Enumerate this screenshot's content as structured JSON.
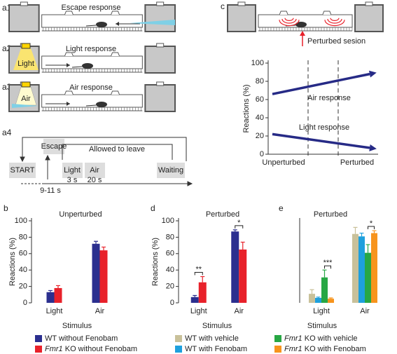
{
  "schematics": {
    "a1": {
      "label": "a1",
      "title": "Escape response"
    },
    "a2": {
      "label": "a2",
      "title": "Light response",
      "stimulus": "Light"
    },
    "a3": {
      "label": "a3",
      "title": "Air response",
      "stimulus": "Air"
    },
    "a4": {
      "label": "a4",
      "start": "START",
      "escape": "Escape",
      "escape_time": "9-11 s",
      "allowed": "Allowed to leave",
      "light": "Light",
      "light_time": "3 s",
      "air": "Air",
      "air_time": "20 s",
      "waiting": "Waiting"
    },
    "c": {
      "label": "c",
      "note": "Perturbed sesion"
    },
    "panel_labels": [
      "b",
      "d",
      "e"
    ]
  },
  "chart_data": [
    {
      "type": "line",
      "ylabel": "Reactions (%)",
      "categories": [
        "Unperturbed",
        "Perturbed"
      ],
      "series": [
        {
          "name": "Air response",
          "color": "#262a86",
          "values": [
            66,
            88
          ]
        },
        {
          "name": "Light response",
          "color": "#262a86",
          "values": [
            22,
            7
          ]
        }
      ],
      "ylim": [
        0,
        100
      ],
      "yticks": [
        0,
        20,
        40,
        60,
        80,
        100
      ]
    },
    {
      "type": "bar",
      "title": "Unperturbed",
      "xlabel": "Stimulus",
      "ylabel": "Reactions (%)",
      "categories": [
        "Light",
        "Air"
      ],
      "series": [
        {
          "name": "WT without Fenobam",
          "color": "#2b2f8f",
          "values": [
            13,
            72
          ],
          "errors": [
            2,
            3
          ]
        },
        {
          "name": "Fmr1 KO without Fenobam",
          "color": "#e8212a",
          "values": [
            18,
            64
          ],
          "errors": [
            3,
            4
          ]
        }
      ],
      "ylim": [
        0,
        100
      ],
      "yticks": [
        0,
        20,
        40,
        60,
        80,
        100
      ]
    },
    {
      "type": "bar",
      "title": "Perturbed",
      "xlabel": "Stimulus",
      "ylabel": "Reactions (%)",
      "categories": [
        "Light",
        "Air"
      ],
      "series": [
        {
          "color": "#2b2f8f",
          "values": [
            7,
            87
          ],
          "errors": [
            2,
            2
          ]
        },
        {
          "color": "#e8212a",
          "values": [
            25,
            65
          ],
          "errors": [
            7,
            9
          ]
        }
      ],
      "annotations": [
        "**",
        "*"
      ],
      "ylim": [
        0,
        100
      ],
      "yticks": [
        0,
        20,
        40,
        60,
        80,
        100
      ]
    },
    {
      "type": "bar",
      "title": "Perturbed",
      "xlabel": "Stimulus",
      "categories": [
        "Light",
        "Air"
      ],
      "series": [
        {
          "name": "WT with vehicle",
          "color": "#c9c19a",
          "values": [
            11,
            84
          ],
          "errors": [
            5,
            8
          ]
        },
        {
          "name": "WT with Fenobam",
          "color": "#1ea0dd",
          "values": [
            6,
            81
          ],
          "errors": [
            1,
            4
          ]
        },
        {
          "name": "Fmr1 KO with vehicle",
          "color": "#27a744",
          "values": [
            31,
            61
          ],
          "errors": [
            9,
            10
          ]
        },
        {
          "name": "Fmr1 KO with Fenobam",
          "color": "#f7941d",
          "values": [
            5,
            85
          ],
          "errors": [
            1,
            3
          ]
        }
      ],
      "annotations": [
        "***",
        "*"
      ],
      "ylim": [
        0,
        100
      ]
    }
  ]
}
